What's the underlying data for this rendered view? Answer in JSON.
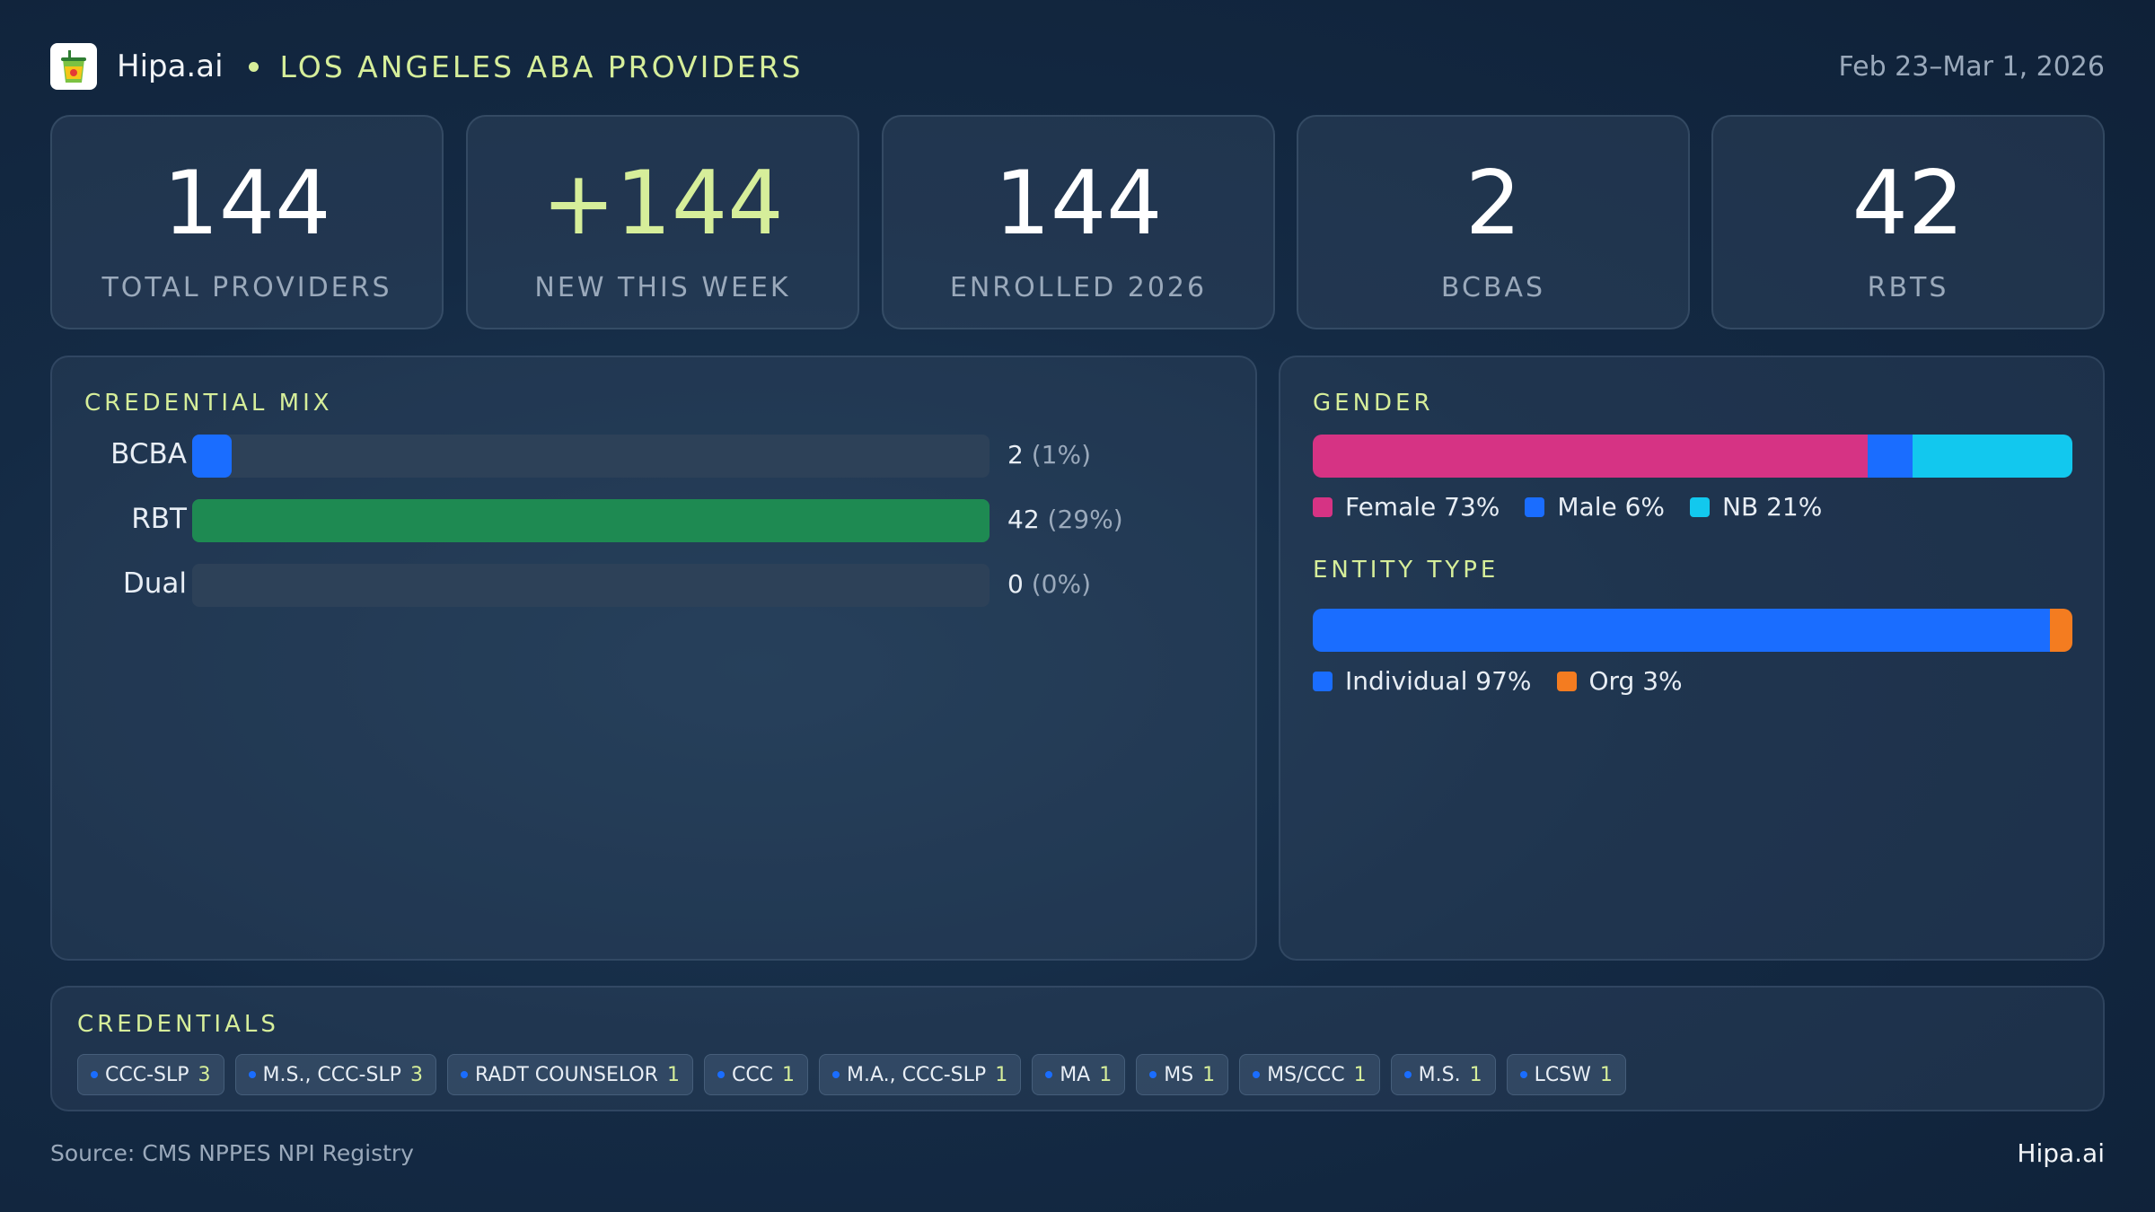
{
  "header": {
    "brand": "Hipa.ai",
    "title": "LOS ANGELES ABA PROVIDERS",
    "date_range": "Feb 23–Mar 1, 2026",
    "logo_icon": "smoothie-cup-icon"
  },
  "kpis": [
    {
      "value": "144",
      "label": "TOTAL PROVIDERS"
    },
    {
      "value": "+144",
      "label": "NEW THIS WEEK"
    },
    {
      "value": "144",
      "label": "ENROLLED 2026"
    },
    {
      "value": "2",
      "label": "BCBAS"
    },
    {
      "value": "42",
      "label": "RBTS"
    }
  ],
  "credential_mix": {
    "title": "CREDENTIAL MIX",
    "rows": [
      {
        "label": "BCBA",
        "count": "2",
        "pct": "(1%)",
        "fraction": 0.05,
        "color": "#1a6dff"
      },
      {
        "label": "RBT",
        "count": "42",
        "pct": "(29%)",
        "fraction": 1.0,
        "color": "#1e8a52"
      },
      {
        "label": "Dual",
        "count": "0",
        "pct": "(0%)",
        "fraction": 0,
        "color": "#2d4158"
      }
    ]
  },
  "gender": {
    "title": "GENDER",
    "segments": [
      {
        "label": "Female 73%",
        "fraction": 0.73,
        "color": "#d63384"
      },
      {
        "label": "Male 6%",
        "fraction": 0.06,
        "color": "#1a6dff"
      },
      {
        "label": "NB 21%",
        "fraction": 0.21,
        "color": "#12c8ee"
      }
    ]
  },
  "entity_type": {
    "title": "ENTITY TYPE",
    "segments": [
      {
        "label": "Individual 97%",
        "fraction": 0.97,
        "color": "#1a6dff"
      },
      {
        "label": "Org 3%",
        "fraction": 0.03,
        "color": "#f47c20"
      }
    ]
  },
  "credentials": {
    "title": "CREDENTIALS",
    "chips": [
      {
        "name": "CCC-SLP",
        "count": "3"
      },
      {
        "name": "M.S., CCC-SLP",
        "count": "3"
      },
      {
        "name": "RADT COUNSELOR",
        "count": "1"
      },
      {
        "name": "CCC",
        "count": "1"
      },
      {
        "name": "M.A., CCC-SLP",
        "count": "1"
      },
      {
        "name": "MA",
        "count": "1"
      },
      {
        "name": "MS",
        "count": "1"
      },
      {
        "name": "MS/CCC",
        "count": "1"
      },
      {
        "name": "M.S.",
        "count": "1"
      },
      {
        "name": "LCSW",
        "count": "1"
      }
    ]
  },
  "footer": {
    "source": "Source: CMS NPPES NPI Registry",
    "brand": "Hipa.ai"
  }
}
